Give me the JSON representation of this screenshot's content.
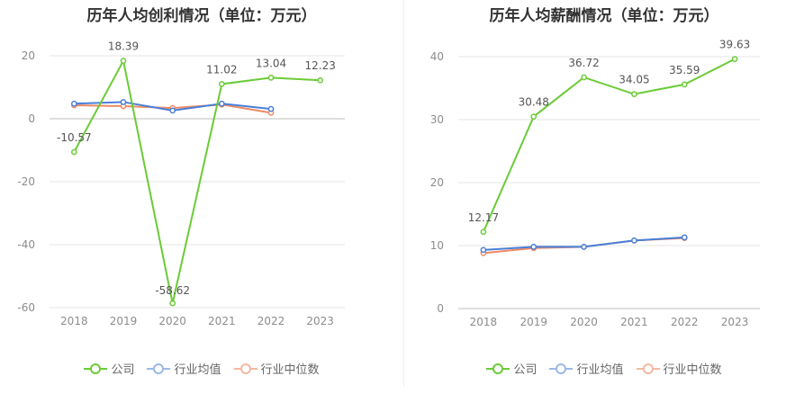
{
  "chart_data": [
    {
      "type": "line",
      "title": "历年人均创利情况（单位：万元）",
      "categories": [
        "2018",
        "2019",
        "2020",
        "2021",
        "2022",
        "2023"
      ],
      "ylim": [
        -60,
        20
      ],
      "yticks": [
        20,
        0,
        -20,
        -40,
        -60
      ],
      "series": [
        {
          "name": "公司",
          "color": "#6acb36",
          "values": [
            -10.57,
            18.39,
            -58.62,
            11.02,
            13.04,
            12.23
          ],
          "labels": [
            "-10.57",
            "18.39",
            "-58.62",
            "11.02",
            "13.04",
            "12.23"
          ]
        },
        {
          "name": "行业均值",
          "color": "#4a7fd9",
          "values": [
            4.8,
            5.3,
            2.6,
            4.8,
            3.1,
            null
          ]
        },
        {
          "name": "行业中位数",
          "color": "#ee8a63",
          "values": [
            4.3,
            4.0,
            3.4,
            4.5,
            1.9,
            null
          ]
        }
      ],
      "grid": true,
      "legend": "bottom"
    },
    {
      "type": "line",
      "title": "历年人均薪酬情况（单位：万元）",
      "categories": [
        "2018",
        "2019",
        "2020",
        "2021",
        "2022",
        "2023"
      ],
      "ylim": [
        0,
        40
      ],
      "yticks": [
        40,
        30,
        20,
        10,
        0
      ],
      "series": [
        {
          "name": "公司",
          "color": "#6acb36",
          "values": [
            12.17,
            30.48,
            36.72,
            34.05,
            35.59,
            39.63
          ],
          "labels": [
            "12.17",
            "30.48",
            "36.72",
            "34.05",
            "35.59",
            "39.63"
          ]
        },
        {
          "name": "行业均值",
          "color": "#4a7fd9",
          "values": [
            9.3,
            9.8,
            9.8,
            10.8,
            11.3,
            null
          ]
        },
        {
          "name": "行业中位数",
          "color": "#ee8a63",
          "values": [
            8.8,
            9.6,
            9.8,
            10.8,
            11.2,
            null
          ]
        }
      ],
      "grid": true,
      "legend": "bottom"
    }
  ]
}
